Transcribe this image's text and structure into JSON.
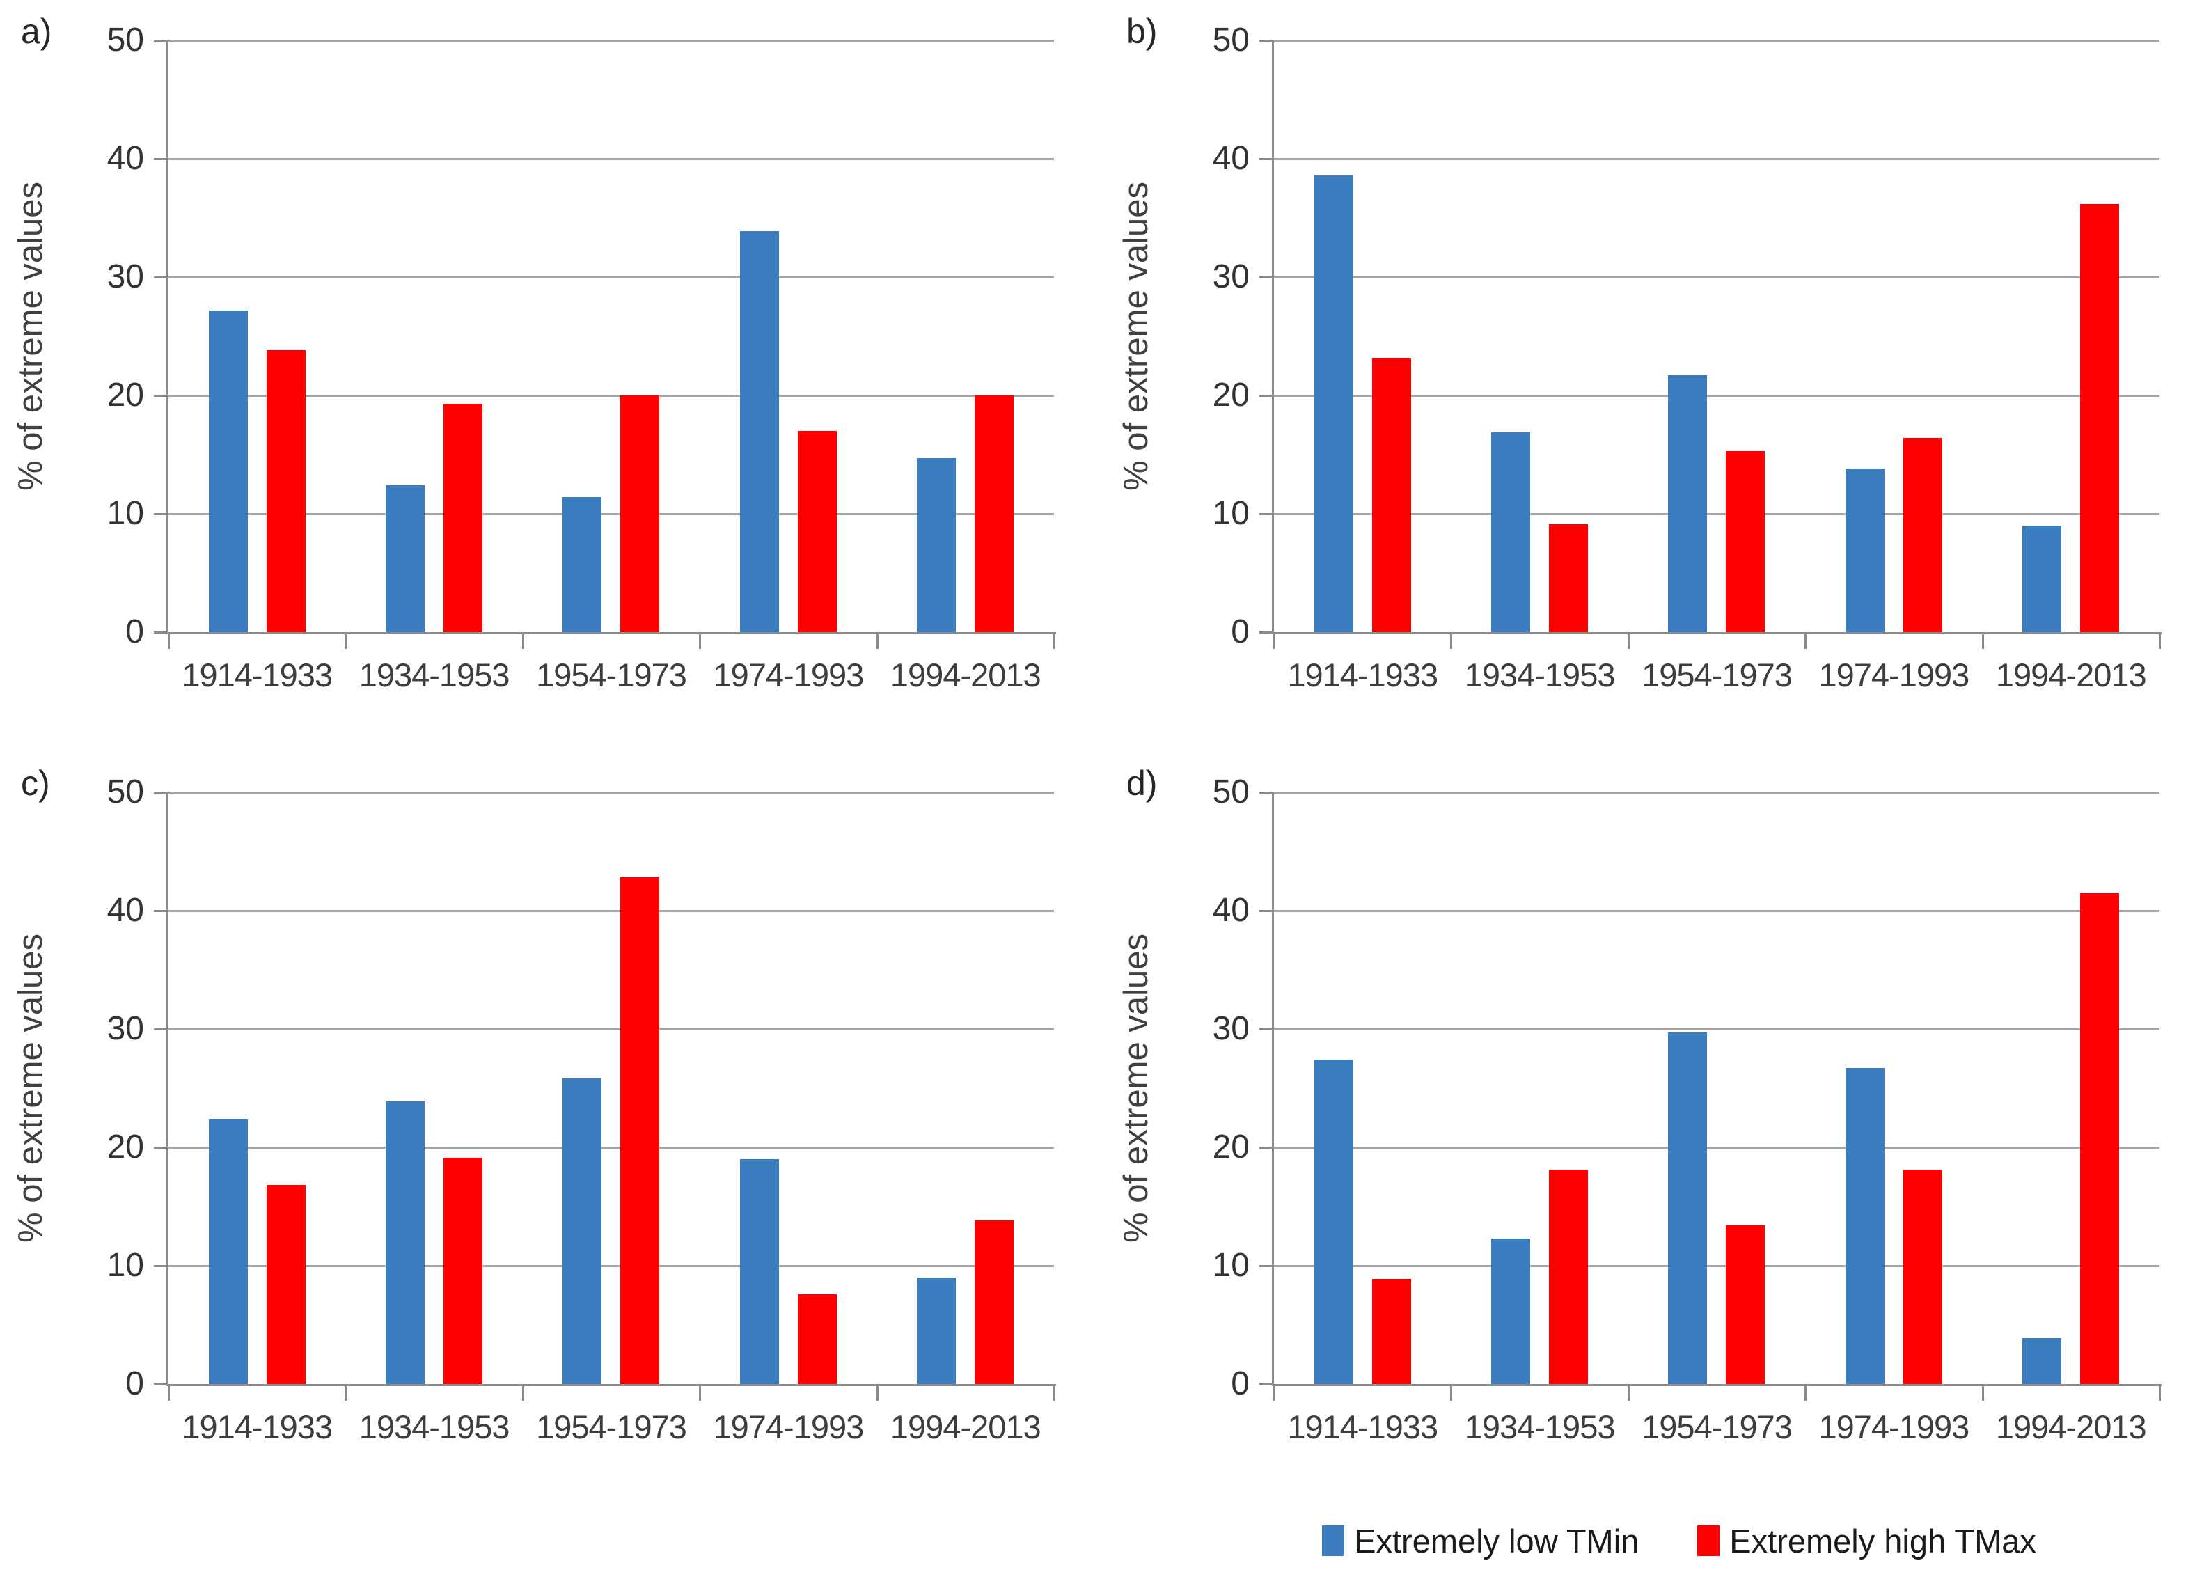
{
  "colors": {
    "tmin_blue": "#3A7CBE",
    "tmax_red": "#FF0000",
    "gridline": "#A3A3A3",
    "axis": "#8A8A8A",
    "tick_text": "#333333",
    "label_text": "#3D3D3D"
  },
  "y_axis": {
    "ticks": [
      "50",
      "40",
      "30",
      "20",
      "10",
      "0"
    ],
    "max": 50
  },
  "legend": {
    "items": [
      {
        "label": "Extremely low TMin",
        "color": "#3A7CBE"
      },
      {
        "label": "Extremely high TMax",
        "color": "#FF0000"
      }
    ]
  },
  "chart_data": [
    {
      "panel_label": "a)",
      "type": "bar",
      "ylabel": "% of extreme values",
      "ylim": [
        0,
        50
      ],
      "grid": true,
      "categories": [
        "1914-1933",
        "1934-1953",
        "1954-1973",
        "1974-1993",
        "1994-2013"
      ],
      "series": [
        {
          "name": "Extremely low TMin",
          "color": "#3A7CBE",
          "values": [
            27.2,
            12.4,
            11.4,
            33.9,
            14.7
          ]
        },
        {
          "name": "Extremely high TMax",
          "color": "#FF0000",
          "values": [
            23.8,
            19.3,
            20.0,
            17.0,
            20.0
          ]
        }
      ]
    },
    {
      "panel_label": "b)",
      "type": "bar",
      "ylabel": "% of extreme values",
      "ylim": [
        0,
        50
      ],
      "grid": true,
      "categories": [
        "1914-1933",
        "1934-1953",
        "1954-1973",
        "1974-1993",
        "1994-2013"
      ],
      "series": [
        {
          "name": "Extremely low TMin",
          "color": "#3A7CBE",
          "values": [
            38.6,
            16.9,
            21.7,
            13.8,
            9.0
          ]
        },
        {
          "name": "Extremely high TMax",
          "color": "#FF0000",
          "values": [
            23.2,
            9.1,
            15.3,
            16.4,
            36.2
          ]
        }
      ]
    },
    {
      "panel_label": "c)",
      "type": "bar",
      "ylabel": "% of extreme values",
      "ylim": [
        0,
        50
      ],
      "grid": true,
      "categories": [
        "1914-1933",
        "1934-1953",
        "1954-1973",
        "1974-1993",
        "1994-2013"
      ],
      "series": [
        {
          "name": "Extremely low TMin",
          "color": "#3A7CBE",
          "values": [
            22.4,
            23.9,
            25.8,
            19.0,
            9.0
          ]
        },
        {
          "name": "Extremely high TMax",
          "color": "#FF0000",
          "values": [
            16.8,
            19.1,
            42.8,
            7.6,
            13.8
          ]
        }
      ]
    },
    {
      "panel_label": "d)",
      "type": "bar",
      "ylabel": "% of extreme values",
      "ylim": [
        0,
        50
      ],
      "grid": true,
      "categories": [
        "1914-1933",
        "1934-1953",
        "1954-1973",
        "1974-1993",
        "1994-2013"
      ],
      "series": [
        {
          "name": "Extremely low TMin",
          "color": "#3A7CBE",
          "values": [
            27.4,
            12.3,
            29.7,
            26.7,
            3.9
          ]
        },
        {
          "name": "Extremely high TMax",
          "color": "#FF0000",
          "values": [
            8.9,
            18.1,
            13.4,
            18.1,
            41.5
          ]
        }
      ]
    }
  ]
}
